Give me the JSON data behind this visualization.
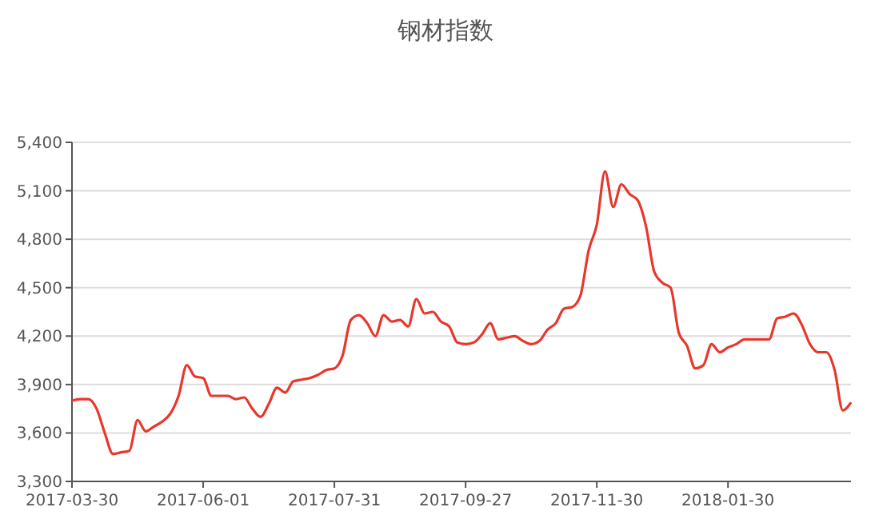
{
  "chart_data": {
    "type": "line",
    "title": "钢材指数",
    "categories": [
      "2017-03-30",
      null,
      null,
      null,
      null,
      null,
      null,
      null,
      null,
      null,
      null,
      null,
      null,
      null,
      null,
      null,
      "2017-06-01",
      null,
      null,
      null,
      null,
      null,
      null,
      null,
      null,
      null,
      null,
      null,
      null,
      null,
      null,
      null,
      "2017-07-31",
      null,
      null,
      null,
      null,
      null,
      null,
      null,
      null,
      null,
      null,
      null,
      null,
      null,
      null,
      null,
      "2017-09-27",
      null,
      null,
      null,
      null,
      null,
      null,
      null,
      null,
      null,
      null,
      null,
      null,
      null,
      null,
      null,
      "2017-11-30",
      null,
      null,
      null,
      null,
      null,
      null,
      null,
      null,
      null,
      null,
      null,
      null,
      null,
      null,
      null,
      "2018-01-30",
      null,
      null,
      null,
      null,
      null,
      null,
      null,
      null,
      null,
      null,
      null,
      null,
      null,
      null,
      null
    ],
    "series": [
      {
        "color": "#e8372c",
        "values": [
          3800,
          3810,
          3810,
          3750,
          3600,
          3470,
          3480,
          3490,
          3680,
          3610,
          3640,
          3670,
          3720,
          3830,
          4020,
          3950,
          3940,
          3830,
          3830,
          3830,
          3810,
          3820,
          3750,
          3700,
          3780,
          3880,
          3850,
          3920,
          3930,
          3940,
          3960,
          3990,
          4000,
          4080,
          4300,
          4330,
          4280,
          4200,
          4330,
          4290,
          4300,
          4260,
          4430,
          4340,
          4350,
          4290,
          4260,
          4160,
          4150,
          4160,
          4210,
          4280,
          4180,
          4190,
          4200,
          4170,
          4150,
          4170,
          4240,
          4280,
          4370,
          4380,
          4450,
          4730,
          4890,
          5220,
          5000,
          5140,
          5080,
          5040,
          4880,
          4600,
          4530,
          4500,
          4220,
          4140,
          4000,
          4020,
          4150,
          4100,
          4130,
          4150,
          4180,
          4180,
          4180,
          4180,
          4310,
          4320,
          4340,
          4270,
          4150,
          4100,
          4100,
          3990,
          3740,
          3790
        ]
      }
    ],
    "ylim": [
      3300,
      5400
    ],
    "yticks": [
      {
        "value": 3300,
        "label": "3,300"
      },
      {
        "value": 3600,
        "label": "3,600"
      },
      {
        "value": 3900,
        "label": "3,900"
      },
      {
        "value": 4200,
        "label": "4,200"
      },
      {
        "value": 4500,
        "label": "4,500"
      },
      {
        "value": 4800,
        "label": "4,800"
      },
      {
        "value": 5100,
        "label": "5,100"
      },
      {
        "value": 5400,
        "label": "5,400"
      }
    ],
    "grid": "y",
    "marker": "none",
    "line_style": "solid"
  }
}
